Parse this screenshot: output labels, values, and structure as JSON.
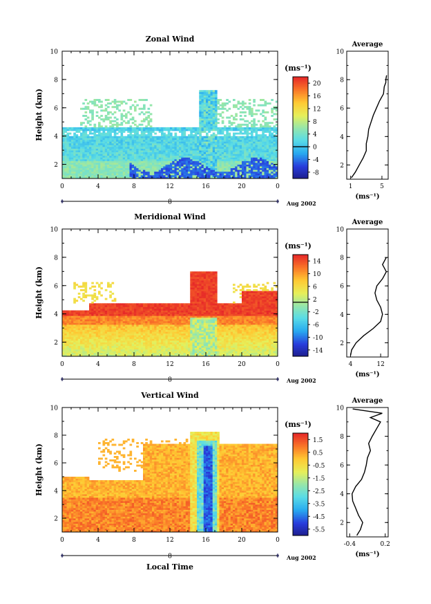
{
  "chart_data": [
    {
      "type": "heatmap",
      "title": "Zonal Wind",
      "ylabel": "Height (km)",
      "ylim": [
        1,
        10
      ],
      "xlim": [
        0,
        24
      ],
      "x_ticks": [
        "0",
        "4",
        "8",
        "12",
        "16",
        "20",
        "0"
      ],
      "y_ticks": [
        "2",
        "4",
        "6",
        "8",
        "10"
      ],
      "date_axis": {
        "label": "Aug 2002",
        "day_labels": [
          "8"
        ]
      },
      "colorbar": {
        "unit": "(ms⁻¹)",
        "ticks": [
          "20",
          "16",
          "12",
          "8",
          "4",
          "0",
          "-4",
          "-8"
        ],
        "range": [
          -10,
          22
        ]
      },
      "average_profile": {
        "title": "Average",
        "xlabel": "(ms⁻¹)",
        "x_ticks": [
          "1",
          "5"
        ],
        "y_ticks": [
          "2",
          "4",
          "6",
          "8",
          "10"
        ],
        "xlim": [
          0.5,
          5.8
        ],
        "height": [
          1.1,
          1.5,
          2.0,
          2.5,
          3.0,
          3.5,
          4.0,
          4.5,
          5.0,
          5.5,
          6.0,
          6.5,
          7.0,
          7.5,
          7.8,
          8.0,
          8.3
        ],
        "value": [
          1.1,
          1.6,
          2.1,
          2.6,
          3.0,
          3.0,
          3.2,
          3.3,
          3.6,
          3.9,
          4.3,
          4.7,
          5.2,
          5.3,
          5.5,
          5.5,
          5.6
        ]
      }
    },
    {
      "type": "heatmap",
      "title": "Meridional Wind",
      "ylabel": "Height (km)",
      "ylim": [
        1,
        10
      ],
      "xlim": [
        0,
        24
      ],
      "x_ticks": [
        "0",
        "4",
        "8",
        "12",
        "16",
        "20",
        "0"
      ],
      "y_ticks": [
        "2",
        "4",
        "6",
        "8",
        "10"
      ],
      "date_axis": {
        "label": "Aug 2002",
        "day_labels": [
          "8"
        ]
      },
      "colorbar": {
        "unit": "(ms⁻¹)",
        "ticks": [
          "14",
          "10",
          "6",
          "2",
          "-2",
          "-6",
          "-10",
          "-14"
        ],
        "range": [
          -16,
          16
        ]
      },
      "average_profile": {
        "title": "Average",
        "xlabel": "(ms⁻¹)",
        "x_ticks": [
          "4",
          "12"
        ],
        "y_ticks": [
          "2",
          "4",
          "6",
          "8",
          "10"
        ],
        "xlim": [
          3.0,
          14.0
        ],
        "height": [
          1.1,
          1.5,
          2.0,
          2.5,
          3.0,
          3.5,
          4.0,
          4.5,
          5.0,
          5.5,
          6.0,
          6.5,
          7.0,
          7.5,
          8.0
        ],
        "value": [
          4.0,
          4.3,
          5.5,
          7.5,
          10.0,
          12.0,
          12.5,
          12.0,
          11.0,
          10.5,
          11.0,
          12.5,
          13.5,
          12.5,
          13.5
        ]
      }
    },
    {
      "type": "heatmap",
      "title": "Vertical Wind",
      "ylabel": "Height (km)",
      "xlabel": "Local Time",
      "ylim": [
        1,
        10
      ],
      "xlim": [
        0,
        24
      ],
      "x_ticks": [
        "0",
        "4",
        "8",
        "12",
        "16",
        "20",
        "0"
      ],
      "y_ticks": [
        "2",
        "4",
        "6",
        "8",
        "10"
      ],
      "date_axis": {
        "label": "Aug 2002",
        "day_labels": [
          "8"
        ]
      },
      "colorbar": {
        "unit": "(ms⁻¹)",
        "ticks": [
          "1.5",
          "0.5",
          "-0.5",
          "-1.5",
          "-2.5",
          "-3.5",
          "-4.5",
          "-5.5"
        ],
        "range": [
          -6,
          2
        ]
      },
      "average_profile": {
        "title": "Average",
        "xlabel": "(ms⁻¹)",
        "x_ticks": [
          "-0.4",
          "0.2"
        ],
        "y_ticks": [
          "2",
          "4",
          "6",
          "8",
          "10"
        ],
        "xlim": [
          -0.45,
          0.25
        ],
        "height": [
          1.1,
          1.5,
          2.0,
          2.5,
          3.0,
          3.5,
          4.0,
          4.5,
          5.0,
          5.5,
          6.0,
          6.5,
          7.0,
          7.5,
          8.0,
          8.5,
          9.0,
          9.3,
          9.6,
          9.9
        ],
        "value": [
          -0.28,
          -0.22,
          -0.18,
          -0.25,
          -0.3,
          -0.35,
          -0.36,
          -0.3,
          -0.2,
          -0.15,
          -0.12,
          -0.1,
          -0.05,
          -0.08,
          -0.02,
          0.05,
          0.12,
          -0.05,
          0.15,
          -0.35
        ]
      }
    }
  ]
}
